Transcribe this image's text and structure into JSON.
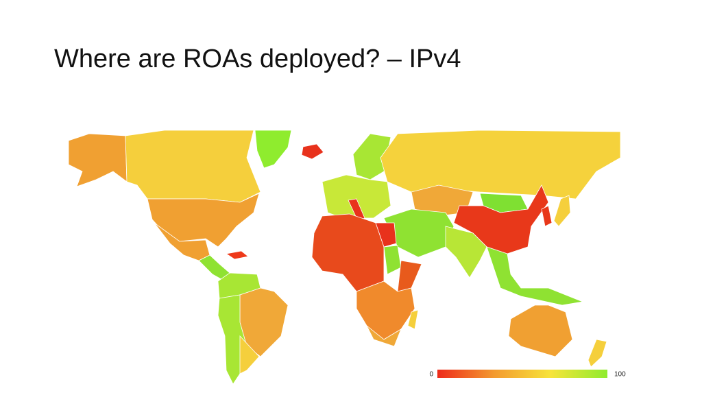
{
  "title": "Where are ROAs deployed? – IPv4",
  "legend": {
    "min": 0,
    "max": 100,
    "colors": [
      "#ee2a1a",
      "#f39a2f",
      "#f7e43a",
      "#8fec2e"
    ]
  }
}
